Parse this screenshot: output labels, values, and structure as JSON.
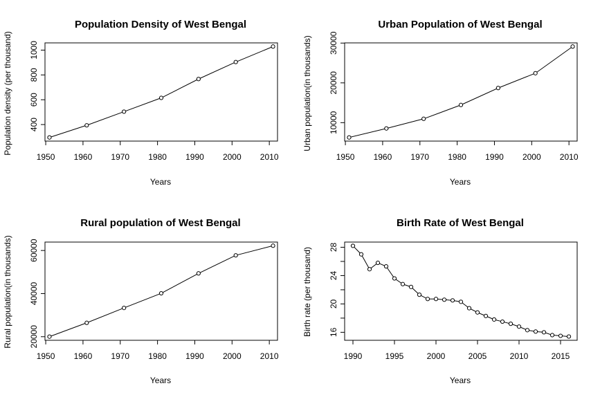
{
  "chart_data": [
    {
      "type": "line",
      "title": "Population Density of West Bengal",
      "xlabel": "Years",
      "ylabel": "Population density (per thousand)",
      "x": [
        1951,
        1961,
        1971,
        1981,
        1991,
        2001,
        2011
      ],
      "values": [
        296,
        394,
        504,
        615,
        767,
        904,
        1029
      ],
      "xticks": [
        1950,
        1960,
        1970,
        1980,
        1990,
        2000,
        2010
      ],
      "yticks": [
        400,
        600,
        800,
        1000
      ],
      "xlim": [
        1949.8,
        2012.2
      ],
      "ylim": [
        266.7,
        1058.3
      ]
    },
    {
      "type": "line",
      "title": "Urban Population of West Bengal",
      "xlabel": "Years",
      "ylabel": "Urban population(in thousands)",
      "x": [
        1951,
        1961,
        1971,
        1981,
        1991,
        2001,
        2011
      ],
      "values": [
        6282,
        8541,
        10967,
        14447,
        18708,
        22427,
        29134
      ],
      "xticks": [
        1950,
        1960,
        1970,
        1980,
        1990,
        2000,
        2010
      ],
      "yticks": [
        10000,
        20000,
        30000
      ],
      "xlim": [
        1949.8,
        2012.2
      ],
      "ylim": [
        5368,
        30048
      ]
    },
    {
      "type": "line",
      "title": "Rural population of West Bengal",
      "xlabel": "Years",
      "ylabel": "Rural population(in thousands)",
      "x": [
        1951,
        1961,
        1971,
        1981,
        1991,
        2001,
        2011
      ],
      "values": [
        20018,
        26427,
        33345,
        40134,
        49370,
        57749,
        62213
      ],
      "xticks": [
        1950,
        1960,
        1970,
        1980,
        1990,
        2000,
        2010
      ],
      "yticks": [
        20000,
        40000,
        60000
      ],
      "xlim": [
        1949.8,
        2012.2
      ],
      "ylim": [
        18330,
        63901
      ]
    },
    {
      "type": "line",
      "title": "Birth Rate of West Bengal",
      "xlabel": "Years",
      "ylabel": "Birth rate (per thousand)",
      "x": [
        1990,
        1991,
        1992,
        1993,
        1994,
        1995,
        1996,
        1997,
        1998,
        1999,
        2000,
        2001,
        2002,
        2003,
        2004,
        2005,
        2006,
        2007,
        2008,
        2009,
        2010,
        2011,
        2012,
        2013,
        2014,
        2015,
        2016
      ],
      "values": [
        28.2,
        27.0,
        24.9,
        25.8,
        25.3,
        23.6,
        22.8,
        22.4,
        21.3,
        20.7,
        20.7,
        20.6,
        20.5,
        20.3,
        19.4,
        18.8,
        18.3,
        17.8,
        17.5,
        17.2,
        16.8,
        16.3,
        16.1,
        16.0,
        15.6,
        15.5,
        15.4
      ],
      "xticks": [
        1990,
        1995,
        2000,
        2005,
        2010,
        2015
      ],
      "yticks": [
        16,
        18,
        20,
        22,
        24,
        26,
        28
      ],
      "ytick_labels_shown": [
        16,
        20,
        24,
        28
      ],
      "xlim": [
        1989.0,
        2017.0
      ],
      "ylim": [
        14.87,
        28.73
      ]
    }
  ]
}
